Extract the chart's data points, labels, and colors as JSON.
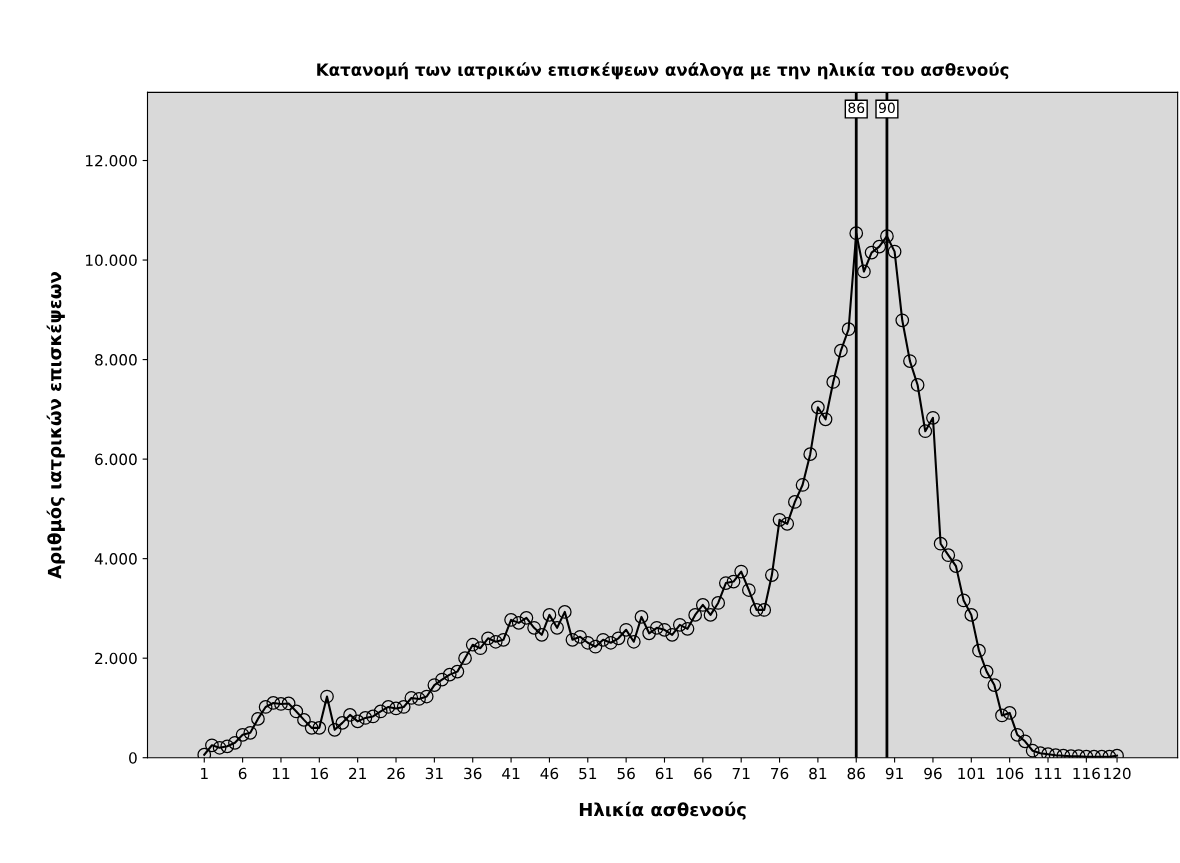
{
  "chart_data": {
    "type": "line",
    "title": "Κατανομή των ιατρικών επισκέψεων ανάλογα με την ηλικία του ασθενούς",
    "xlabel": "Ηλικία ασθενούς",
    "ylabel": "Αριθμός ιατρικών επισκέψεων",
    "x": [
      1,
      2,
      3,
      4,
      5,
      6,
      7,
      8,
      9,
      10,
      11,
      12,
      13,
      14,
      15,
      16,
      17,
      18,
      19,
      20,
      21,
      22,
      23,
      24,
      25,
      26,
      27,
      28,
      29,
      30,
      31,
      32,
      33,
      34,
      35,
      36,
      37,
      38,
      39,
      40,
      41,
      42,
      43,
      44,
      45,
      46,
      47,
      48,
      49,
      50,
      51,
      52,
      53,
      54,
      55,
      56,
      57,
      58,
      59,
      60,
      61,
      62,
      63,
      64,
      65,
      66,
      67,
      68,
      69,
      70,
      71,
      72,
      73,
      74,
      75,
      76,
      77,
      78,
      79,
      80,
      81,
      82,
      83,
      84,
      85,
      86,
      87,
      88,
      89,
      90,
      91,
      92,
      93,
      94,
      95,
      96,
      97,
      98,
      99,
      100,
      101,
      102,
      103,
      104,
      105,
      106,
      107,
      108,
      109,
      110,
      111,
      112,
      113,
      114,
      115,
      116,
      117,
      118,
      119,
      120
    ],
    "series": [
      {
        "color": "#000000",
        "values": [
          60,
          250,
          200,
          230,
          300,
          460,
          500,
          780,
          1020,
          1100,
          1080,
          1090,
          930,
          760,
          600,
          600,
          1230,
          560,
          700,
          860,
          730,
          800,
          830,
          930,
          1020,
          990,
          1020,
          1200,
          1180,
          1230,
          1460,
          1570,
          1670,
          1730,
          2000,
          2270,
          2200,
          2400,
          2330,
          2370,
          2770,
          2710,
          2810,
          2610,
          2470,
          2870,
          2610,
          2930,
          2370,
          2430,
          2310,
          2230,
          2370,
          2310,
          2400,
          2570,
          2330,
          2830,
          2500,
          2610,
          2570,
          2470,
          2670,
          2590,
          2870,
          3070,
          2870,
          3110,
          3510,
          3540,
          3740,
          3370,
          2970,
          2970,
          3670,
          4780,
          4700,
          5140,
          5480,
          6100,
          7040,
          6800,
          7550,
          8180,
          8610,
          10540,
          9770,
          10150,
          10270,
          10480,
          10170,
          8790,
          7970,
          7490,
          6560,
          6830,
          4300,
          4070,
          3850,
          3160,
          2870,
          2150,
          1730,
          1460,
          850,
          900,
          460,
          330,
          140,
          90,
          70,
          50,
          40,
          30,
          30,
          20,
          20,
          20,
          20,
          40
        ]
      }
    ],
    "xlim": [
      -6.4,
      127.9
    ],
    "ylim": [
      0,
      13370
    ],
    "xticks": [
      1,
      6,
      11,
      16,
      21,
      26,
      31,
      36,
      41,
      46,
      51,
      56,
      61,
      66,
      71,
      76,
      81,
      86,
      91,
      96,
      101,
      106,
      111,
      116,
      120
    ],
    "yticks": [
      0,
      {
        "value": 2000,
        "label": "2.000"
      },
      {
        "value": 4000,
        "label": "4.000"
      },
      {
        "value": 6000,
        "label": "6.000"
      },
      {
        "value": 8000,
        "label": "8.000"
      },
      {
        "value": 10000,
        "label": "10.000"
      },
      {
        "value": 12000,
        "label": "12.000"
      }
    ],
    "ref_lines": [
      {
        "axis": "x",
        "value": 86,
        "label": "86",
        "color": "#000000"
      },
      {
        "axis": "x",
        "value": 90,
        "label": "90",
        "color": "#000000"
      }
    ],
    "marker": "circle",
    "line_style": "solid",
    "grid": false
  }
}
